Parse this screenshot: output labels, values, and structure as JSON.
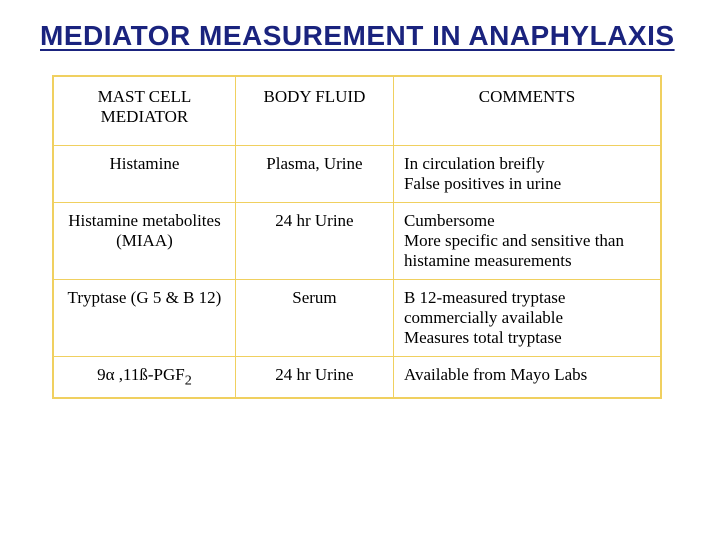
{
  "title": "MEDIATOR MEASUREMENT IN ANAPHYLAXIS",
  "table": {
    "columns": [
      "MAST CELL MEDIATOR",
      "BODY FLUID",
      "COMMENTS"
    ],
    "rows": [
      {
        "mediator": "Histamine",
        "fluid": "Plasma, Urine",
        "comments": "In circulation breifly\nFalse positives in urine"
      },
      {
        "mediator": "Histamine metabolites (MIAA)",
        "fluid": "24 hr Urine",
        "comments": "Cumbersome\nMore specific and sensitive than histamine measurements"
      },
      {
        "mediator": "Tryptase (G 5 & B 12)",
        "fluid": "Serum",
        "comments": "B 12-measured tryptase commercially available\nMeasures total tryptase"
      },
      {
        "mediator_html": "9α ,11ß-PGF<sub>2</sub>",
        "mediator": "9α ,11ß-PGF2",
        "fluid": "24 hr Urine",
        "comments": "Available from Mayo Labs"
      }
    ]
  },
  "colors": {
    "title_color": "#1a237e",
    "table_border": "#f0d060",
    "background": "#ffffff",
    "text": "#000000"
  }
}
